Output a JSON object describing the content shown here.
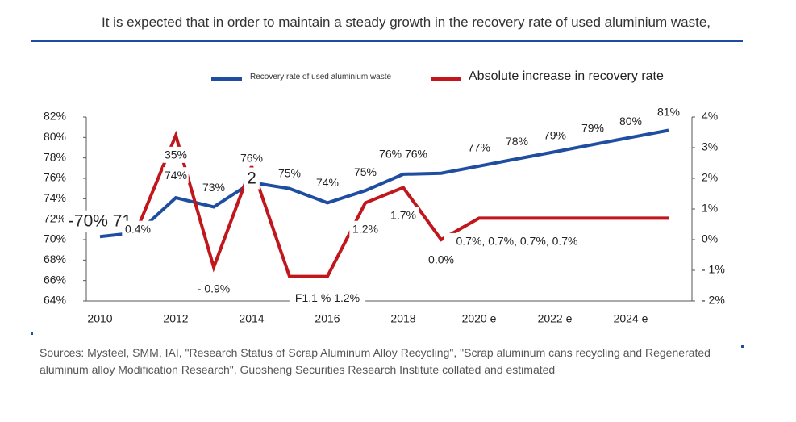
{
  "header": {
    "title": "It is expected that in order to maintain a steady growth in the recovery rate of used aluminium waste,"
  },
  "legend": {
    "series_1": "Recovery rate of used aluminium waste",
    "series_2": "Absolute increase in recovery rate"
  },
  "colors": {
    "series_1": "#1f4ea0",
    "series_2": "#c0161c",
    "axis": "#555555",
    "rule": "#1f4ea0"
  },
  "chart_data": {
    "type": "line",
    "x": [
      "2010",
      "2011",
      "2012",
      "2013",
      "2014",
      "2015",
      "2016",
      "2017",
      "2018",
      "2019",
      "2020 e",
      "2021 e",
      "2022 e",
      "2023 e",
      "2024 e",
      "2025 e"
    ],
    "x_tick_labels": [
      "2010",
      "2012",
      "2014",
      "2016",
      "2018",
      "2020 e",
      "2022 e",
      "2024 e"
    ],
    "y_left": {
      "ylim": [
        64,
        82
      ],
      "ticks": [
        "64%",
        "66%",
        "68%",
        "70%",
        "72%",
        "74%",
        "76%",
        "78%",
        "80%",
        "82%"
      ]
    },
    "y_right": {
      "ylim": [
        -2,
        4
      ],
      "ticks": [
        "- 2%",
        "- 1%",
        "0%",
        "1%",
        "2%",
        "3%",
        "4%"
      ]
    },
    "series": [
      {
        "name": "Recovery rate of used aluminium waste",
        "axis": "left",
        "values": [
          70.3,
          70.7,
          74.1,
          73.2,
          75.6,
          75.0,
          73.6,
          74.8,
          76.4,
          76.5,
          77.2,
          77.9,
          78.6,
          79.3,
          80.0,
          80.7
        ]
      },
      {
        "name": "Absolute increase in recovery rate",
        "axis": "right",
        "values": [
          null,
          0.4,
          3.4,
          -0.9,
          2.4,
          -1.2,
          -1.2,
          1.2,
          1.7,
          0.0,
          0.7,
          0.7,
          0.7,
          0.7,
          0.7,
          0.7
        ]
      }
    ],
    "data_labels": [
      {
        "text": "-70% 71",
        "x": "2010",
        "y": 71.8,
        "axis": "left",
        "size": "large"
      },
      {
        "text": "0.4%",
        "x": "2011",
        "y": 0.35,
        "axis": "right"
      },
      {
        "text": "35%",
        "x": "2012",
        "y": 78.3,
        "axis": "left"
      },
      {
        "text": "74%",
        "x": "2012",
        "y": 76.3,
        "axis": "left"
      },
      {
        "text": "73%",
        "x": "2013",
        "y": 75.1,
        "axis": "left"
      },
      {
        "text": "- 0.9%",
        "x": "2013",
        "y": -1.6,
        "axis": "right"
      },
      {
        "text": "76%",
        "x": "2014",
        "y": 78.0,
        "axis": "left"
      },
      {
        "text": "2",
        "x": "2014",
        "y": 76.0,
        "axis": "left",
        "size": "large"
      },
      {
        "text": "75%",
        "x": "2015",
        "y": 76.5,
        "axis": "left"
      },
      {
        "text": "F1.1 % 1.2%",
        "x": "2016",
        "y": -1.9,
        "axis": "right"
      },
      {
        "text": "74%",
        "x": "2016",
        "y": 75.6,
        "axis": "left"
      },
      {
        "text": "75%",
        "x": "2017",
        "y": 76.6,
        "axis": "left"
      },
      {
        "text": "1.2%",
        "x": "2017",
        "y": 0.35,
        "axis": "right"
      },
      {
        "text": "76% 76%",
        "x": "2018",
        "y": 78.4,
        "axis": "left"
      },
      {
        "text": "1.7%",
        "x": "2018",
        "y": 0.8,
        "axis": "right"
      },
      {
        "text": "0.0%",
        "x": "2019",
        "y": -0.65,
        "axis": "right"
      },
      {
        "text": "77%",
        "x": "2020 e",
        "y": 79.0,
        "axis": "left"
      },
      {
        "text": "0.7%, 0.7%, 0.7%, 0.7%",
        "x": "2021 e",
        "y": -0.05,
        "axis": "right"
      },
      {
        "text": "78%",
        "x": "2021 e",
        "y": 79.6,
        "axis": "left"
      },
      {
        "text": "79%",
        "x": "2022 e",
        "y": 80.2,
        "axis": "left"
      },
      {
        "text": "79%",
        "x": "2023 e",
        "y": 80.9,
        "axis": "left"
      },
      {
        "text": "80%",
        "x": "2024 e",
        "y": 81.6,
        "axis": "left"
      },
      {
        "text": "81%",
        "x": "2025 e",
        "y": 82.5,
        "axis": "left"
      }
    ],
    "legend_position": "top",
    "grid": false
  },
  "source": {
    "text": "Sources: Mysteel, SMM, IAI, \"Research Status of Scrap Aluminum Alloy Recycling\", \"Scrap aluminum cans recycling and Regenerated aluminum alloy Modification Research\", Guosheng Securities Research Institute collated and estimated"
  }
}
